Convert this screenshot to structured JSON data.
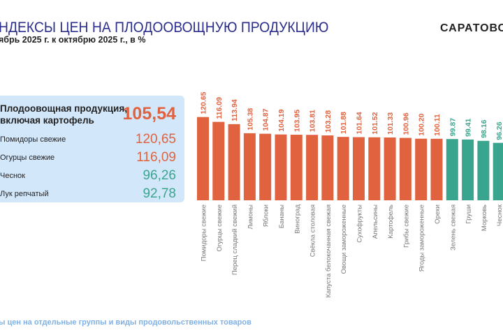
{
  "header": {
    "title": "НДЕКСЫ ЦЕН НА ПЛОДООВОЩНУЮ ПРОДУКЦИЮ",
    "subtitle": "ябрь 2025 г. к октябрю 2025 г., в %",
    "brand": "САРАТОВС"
  },
  "card": {
    "main": {
      "label_line1": "Плодоовощная продукция,",
      "label_line2": "включая картофель",
      "value": "105,54"
    },
    "items": [
      {
        "label": "Помидоры свежие",
        "value": "120,65",
        "color": "#e0623f"
      },
      {
        "label": "Огурцы свежие",
        "value": "116,09",
        "color": "#e0623f"
      },
      {
        "label": "Чеснок",
        "value": "96,26",
        "color": "#3aa58e"
      },
      {
        "label": "Лук репчатый",
        "value": "92,78",
        "color": "#3aa58e"
      }
    ]
  },
  "footer": {
    "text": "ы цен на отдельные группы и виды продовольственных товаров"
  },
  "chart_data": {
    "type": "bar",
    "colors": {
      "above_100": "#e0623f",
      "below_100": "#3aa58e"
    },
    "categories": [
      "Помидоры свежие",
      "Огурцы свежие",
      "Перец сладкий свежий",
      "Лимоны",
      "Яблоки",
      "Бананы",
      "Виноград",
      "Свёкла столовая",
      "Капуста белокочанная свежая",
      "Овощи замороженные",
      "Сухофрукты",
      "Апельсины",
      "Картофель",
      "Грибы свежие",
      "Ягоды замороженные",
      "Орехи",
      "Зелень свежая",
      "Груши",
      "Морковь",
      "Чеснок"
    ],
    "values": [
      120.65,
      116.09,
      113.94,
      105.38,
      104.87,
      104.19,
      103.95,
      103.81,
      103.28,
      101.88,
      101.64,
      101.52,
      101.33,
      100.96,
      100.2,
      100.11,
      99.87,
      99.41,
      98.16,
      96.26
    ],
    "value_labels": [
      "120.65",
      "116.09",
      "113.94",
      "105.38",
      "104.87",
      "104.19",
      "103.95",
      "103.81",
      "103.28",
      "101.88",
      "101.64",
      "101.52",
      "101.33",
      "100.96",
      "100.20",
      "100.11",
      "99.87",
      "99.41",
      "98.16",
      "96.26"
    ]
  }
}
